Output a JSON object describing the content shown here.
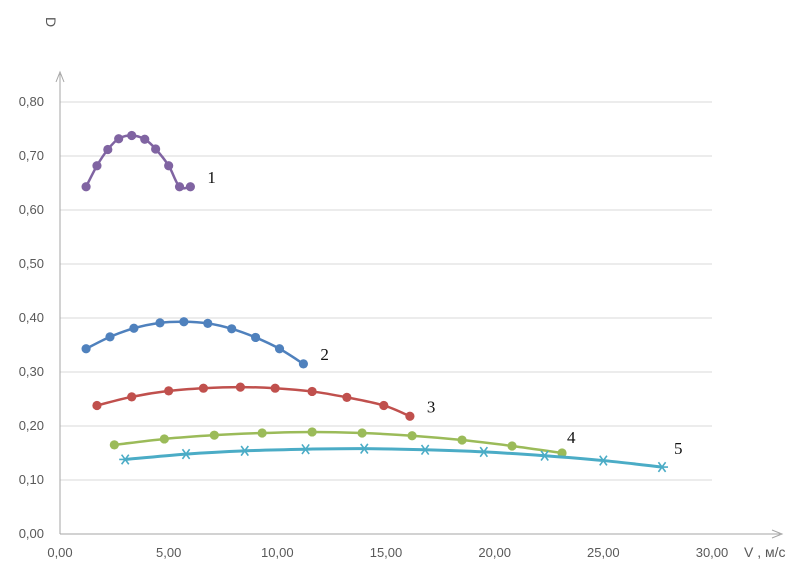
{
  "chart_data": {
    "type": "line",
    "xlabel": "V , м/с",
    "ylabel": "D",
    "xlim": [
      0,
      30
    ],
    "ylim": [
      0,
      0.8
    ],
    "x_ticks": [
      "0,00",
      "5,00",
      "10,00",
      "15,00",
      "20,00",
      "25,00",
      "30,00"
    ],
    "y_ticks": [
      "0,00",
      "0,10",
      "0,20",
      "0,30",
      "0,40",
      "0,50",
      "0,60",
      "0,70",
      "0,80"
    ],
    "grid": "horizontal",
    "series": [
      {
        "name": "1",
        "color": "#8064a2",
        "marker": "circle",
        "x": [
          1.2,
          1.7,
          2.2,
          2.7,
          3.3,
          3.9,
          4.4,
          5.0,
          5.5,
          6.0
        ],
        "y": [
          0.643,
          0.682,
          0.712,
          0.732,
          0.738,
          0.731,
          0.713,
          0.682,
          0.643,
          0.643
        ]
      },
      {
        "name": "2",
        "color": "#4f81bd",
        "marker": "circle",
        "x": [
          1.2,
          2.3,
          3.4,
          4.6,
          5.7,
          6.8,
          7.9,
          9.0,
          10.1,
          11.2
        ],
        "y": [
          0.343,
          0.365,
          0.381,
          0.391,
          0.393,
          0.39,
          0.38,
          0.364,
          0.343,
          0.315
        ]
      },
      {
        "name": "3",
        "color": "#c0504d",
        "marker": "circle",
        "x": [
          1.7,
          3.3,
          5.0,
          6.6,
          8.3,
          9.9,
          11.6,
          13.2,
          14.9,
          16.1
        ],
        "y": [
          0.238,
          0.254,
          0.265,
          0.27,
          0.272,
          0.27,
          0.264,
          0.253,
          0.238,
          0.218
        ]
      },
      {
        "name": "4",
        "color": "#9bbb59",
        "marker": "circle",
        "x": [
          2.5,
          4.8,
          7.1,
          9.3,
          11.6,
          13.9,
          16.2,
          18.5,
          20.8,
          23.1
        ],
        "y": [
          0.165,
          0.176,
          0.183,
          0.187,
          0.189,
          0.187,
          0.182,
          0.174,
          0.163,
          0.15
        ]
      },
      {
        "name": "5",
        "color": "#4bacc6",
        "marker": "star",
        "x": [
          3.0,
          5.8,
          8.5,
          11.3,
          14.0,
          16.8,
          19.5,
          22.3,
          25.0,
          27.7
        ],
        "y": [
          0.138,
          0.148,
          0.154,
          0.157,
          0.158,
          0.156,
          0.152,
          0.145,
          0.136,
          0.124
        ]
      }
    ]
  }
}
